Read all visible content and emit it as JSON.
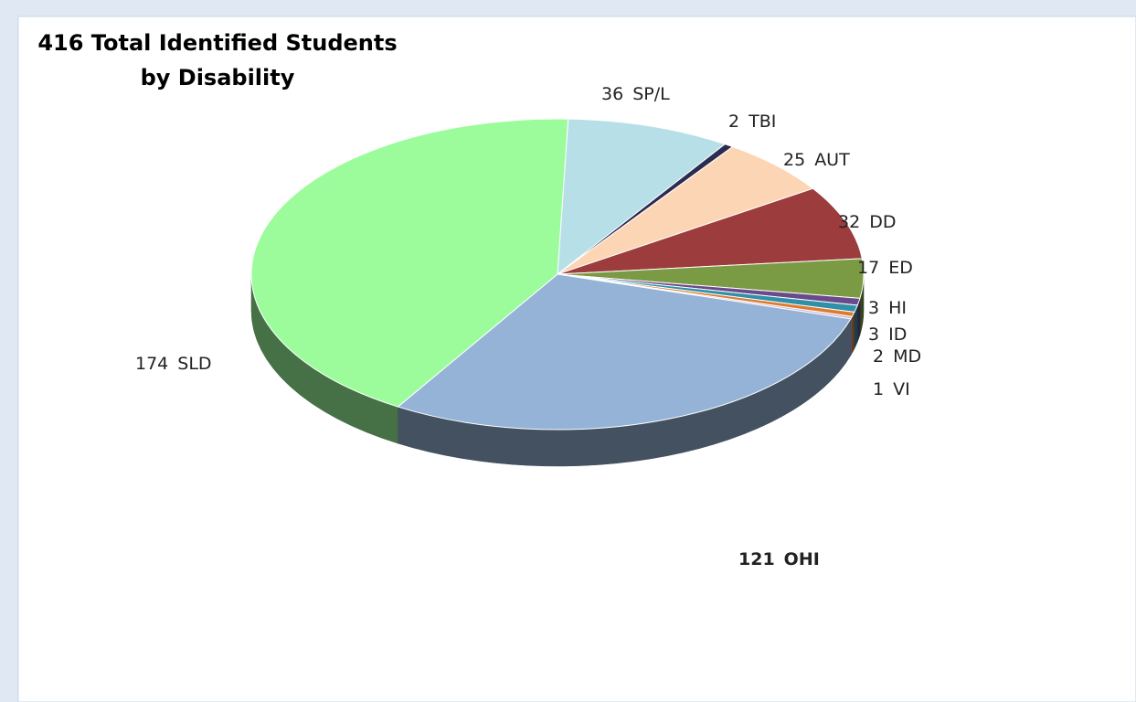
{
  "chart_data": {
    "type": "pie3d",
    "title": [
      "416 Total Identified Students",
      "by Disability"
    ],
    "categories": [
      "SP/L",
      "TBI",
      "AUT",
      "DD",
      "ED",
      "HI",
      "ID",
      "MD",
      "VI",
      "OHI",
      "SLD"
    ],
    "values": [
      36,
      2,
      25,
      32,
      17,
      3,
      3,
      2,
      1,
      121,
      174
    ],
    "colors": [
      "#b7dfe8",
      "#2c2c50",
      "#fcd5b5",
      "#9c3c3c",
      "#7a9a44",
      "#6a4a8a",
      "#3090a8",
      "#e07a30",
      "#c8b8d8",
      "#95b3d7",
      "#9cfc9c"
    ]
  }
}
